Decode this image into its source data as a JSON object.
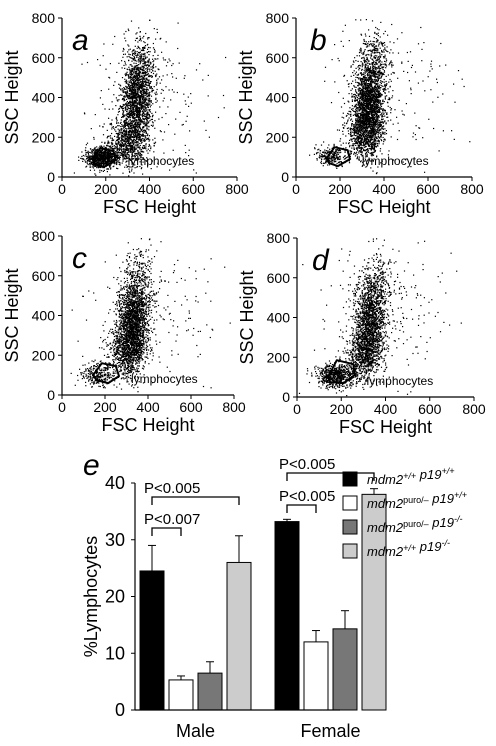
{
  "figure": {
    "background": "#ffffff"
  },
  "chart_data": [
    {
      "panel": "a",
      "type": "scatter",
      "xlabel": "FSC Height",
      "ylabel": "SSC Height",
      "xlim": [
        0,
        800
      ],
      "ylim": [
        0,
        800
      ],
      "xticks": [
        "0",
        "200",
        "400",
        "600",
        "800"
      ],
      "yticks": [
        "0",
        "200",
        "400",
        "600",
        "800"
      ],
      "gate_label": "lymphocytes",
      "gate": [
        [
          140,
          90
        ],
        [
          175,
          145
        ],
        [
          235,
          130
        ],
        [
          245,
          85
        ],
        [
          190,
          50
        ],
        [
          150,
          65
        ]
      ],
      "clusters": [
        {
          "x": 300,
          "y": 180,
          "sx": 45,
          "sy": 60,
          "n": 700
        },
        {
          "x": 340,
          "y": 380,
          "sx": 35,
          "sy": 110,
          "n": 1500
        },
        {
          "x": 180,
          "y": 100,
          "sx": 40,
          "sy": 25,
          "n": 800
        },
        {
          "x": 370,
          "y": 560,
          "sx": 40,
          "sy": 90,
          "n": 300
        },
        {
          "x": 400,
          "y": 400,
          "sx": 150,
          "sy": 180,
          "n": 180
        }
      ],
      "point_color": "#000000"
    },
    {
      "panel": "b",
      "type": "scatter",
      "xlabel": "FSC Height",
      "ylabel": "SSC Height",
      "xlim": [
        0,
        800
      ],
      "ylim": [
        0,
        800
      ],
      "xticks": [
        "0",
        "200",
        "400",
        "600",
        "800"
      ],
      "yticks": [
        "0",
        "200",
        "400",
        "600",
        "800"
      ],
      "gate_label": "lymphocytes",
      "gate": [
        [
          140,
          95
        ],
        [
          175,
          150
        ],
        [
          235,
          135
        ],
        [
          245,
          90
        ],
        [
          190,
          55
        ],
        [
          150,
          70
        ]
      ],
      "clusters": [
        {
          "x": 310,
          "y": 230,
          "sx": 40,
          "sy": 70,
          "n": 900
        },
        {
          "x": 330,
          "y": 380,
          "sx": 35,
          "sy": 110,
          "n": 1700
        },
        {
          "x": 160,
          "y": 110,
          "sx": 35,
          "sy": 25,
          "n": 250
        },
        {
          "x": 360,
          "y": 580,
          "sx": 35,
          "sy": 80,
          "n": 300
        },
        {
          "x": 420,
          "y": 420,
          "sx": 160,
          "sy": 180,
          "n": 180
        }
      ],
      "point_color": "#000000"
    },
    {
      "panel": "c",
      "type": "scatter",
      "xlabel": "FSC Height",
      "ylabel": "SSC Height",
      "xlim": [
        0,
        800
      ],
      "ylim": [
        0,
        800
      ],
      "xticks": [
        "0",
        "200",
        "400",
        "600",
        "800"
      ],
      "yticks": [
        "0",
        "200",
        "400",
        "600",
        "800"
      ],
      "gate_label": "lymphocytes",
      "gate": [
        [
          145,
          100
        ],
        [
          185,
          160
        ],
        [
          250,
          145
        ],
        [
          265,
          95
        ],
        [
          215,
          60
        ],
        [
          160,
          75
        ]
      ],
      "clusters": [
        {
          "x": 300,
          "y": 230,
          "sx": 40,
          "sy": 70,
          "n": 900
        },
        {
          "x": 330,
          "y": 380,
          "sx": 35,
          "sy": 100,
          "n": 1500
        },
        {
          "x": 160,
          "y": 110,
          "sx": 40,
          "sy": 30,
          "n": 250
        },
        {
          "x": 360,
          "y": 560,
          "sx": 40,
          "sy": 90,
          "n": 300
        },
        {
          "x": 420,
          "y": 420,
          "sx": 160,
          "sy": 180,
          "n": 180
        }
      ],
      "point_color": "#000000"
    },
    {
      "panel": "d",
      "type": "scatter",
      "xlabel": "FSC Height",
      "ylabel": "SSC Height",
      "xlim": [
        0,
        800
      ],
      "ylim": [
        0,
        800
      ],
      "xticks": [
        "0",
        "200",
        "400",
        "600",
        "800"
      ],
      "yticks": [
        "0",
        "200",
        "400",
        "600",
        "800"
      ],
      "gate_label": "lymphocytes",
      "gate": [
        [
          140,
          100
        ],
        [
          180,
          185
        ],
        [
          255,
          165
        ],
        [
          260,
          110
        ],
        [
          210,
          70
        ],
        [
          150,
          75
        ]
      ],
      "clusters": [
        {
          "x": 300,
          "y": 230,
          "sx": 40,
          "sy": 70,
          "n": 700
        },
        {
          "x": 330,
          "y": 380,
          "sx": 35,
          "sy": 110,
          "n": 1300
        },
        {
          "x": 180,
          "y": 110,
          "sx": 45,
          "sy": 30,
          "n": 700
        },
        {
          "x": 360,
          "y": 560,
          "sx": 40,
          "sy": 90,
          "n": 300
        },
        {
          "x": 420,
          "y": 420,
          "sx": 160,
          "sy": 180,
          "n": 180
        }
      ],
      "point_color": "#000000"
    },
    {
      "panel": "e",
      "type": "bar",
      "ylabel": "%Lymphocytes",
      "ylim": [
        0,
        40
      ],
      "yticks": [
        "0",
        "10",
        "20",
        "30",
        "40"
      ],
      "categories": [
        "Male",
        "Female"
      ],
      "series": [
        {
          "values": [
            24.5,
            33.2
          ],
          "errors": [
            4.5,
            0.4
          ],
          "color": "#000000",
          "legend": [
            {
              "t": "mdm2",
              "i": true
            },
            {
              "t": "+/+",
              "sup": true,
              "i": true
            },
            {
              "t": " p19",
              "i": true
            },
            {
              "t": "+/+",
              "sup": true,
              "i": true
            }
          ]
        },
        {
          "values": [
            5.3,
            12.0
          ],
          "errors": [
            0.7,
            2.0
          ],
          "color": "#ffffff",
          "legend": [
            {
              "t": "mdm2",
              "i": true
            },
            {
              "t": "puro/–",
              "sup": true
            },
            {
              "t": " p19",
              "i": true
            },
            {
              "t": "+/+",
              "sup": true,
              "i": true
            }
          ]
        },
        {
          "values": [
            6.5,
            14.3
          ],
          "errors": [
            2.0,
            3.2
          ],
          "color": "#777777",
          "legend": [
            {
              "t": "mdm2",
              "i": true
            },
            {
              "t": "puro/–",
              "sup": true
            },
            {
              "t": " p19",
              "i": true
            },
            {
              "t": "-/-",
              "sup": true,
              "i": true
            }
          ]
        },
        {
          "values": [
            26.0,
            38.0
          ],
          "errors": [
            4.7,
            1.0
          ],
          "color": "#cccccc",
          "legend": [
            {
              "t": "mdm2",
              "i": true
            },
            {
              "t": "+/+",
              "sup": true,
              "i": true
            },
            {
              "t": "    p19",
              "i": true
            },
            {
              "t": "-/-",
              "sup": true,
              "i": true
            }
          ]
        }
      ],
      "annotations": [
        {
          "label": "P<0.005",
          "group": 0,
          "from": 0,
          "to": 3
        },
        {
          "label": "P<0.007",
          "group": 0,
          "from": 0,
          "to": 1
        },
        {
          "label": "P<0.005",
          "group": 1,
          "from": 0,
          "to": 3
        },
        {
          "label": "P<0.005",
          "group": 1,
          "from": 0,
          "to": 1
        }
      ]
    }
  ]
}
